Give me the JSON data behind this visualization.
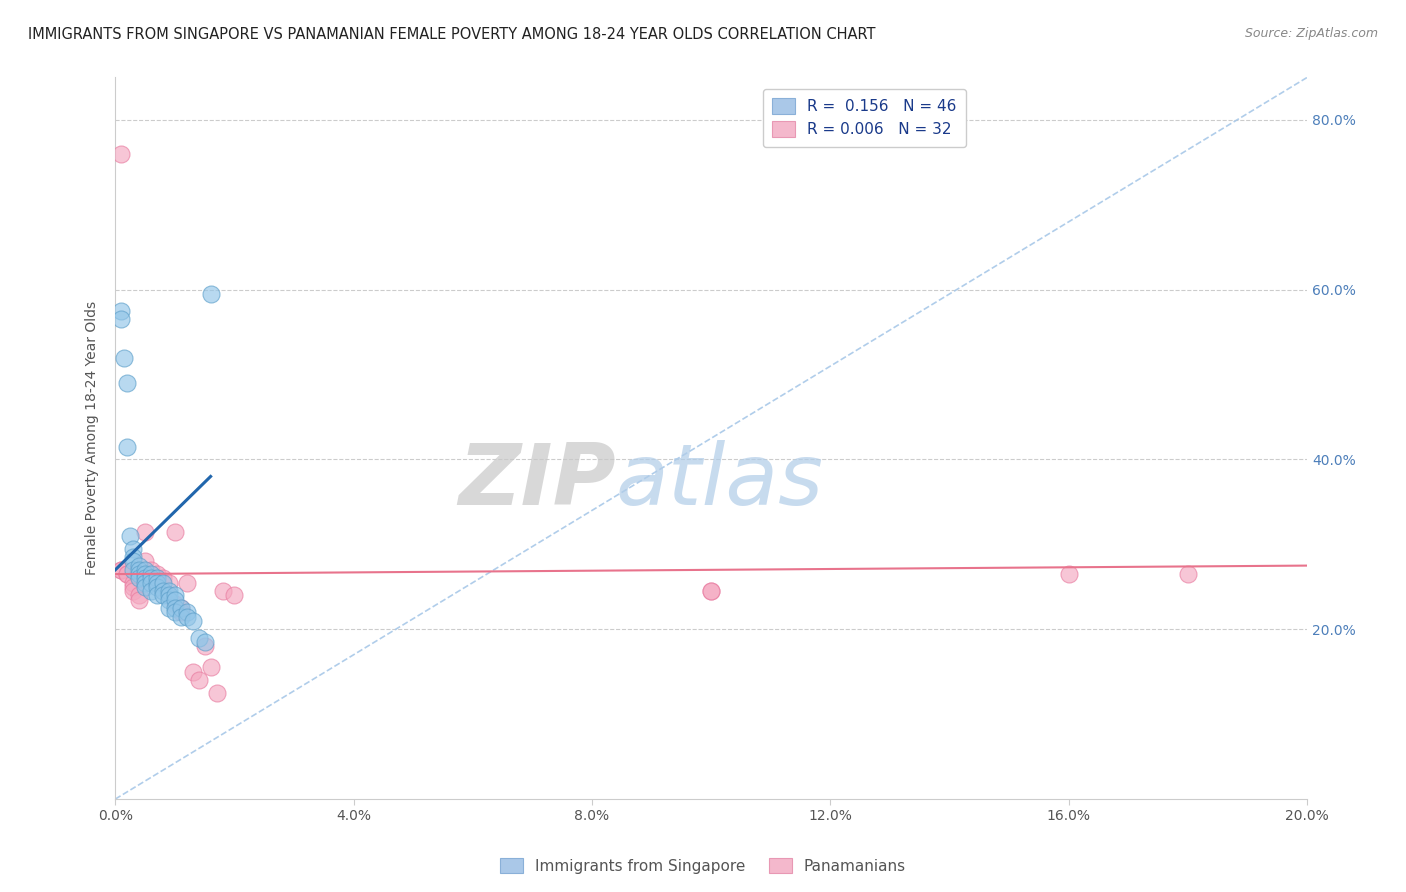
{
  "title": "IMMIGRANTS FROM SINGAPORE VS PANAMANIAN FEMALE POVERTY AMONG 18-24 YEAR OLDS CORRELATION CHART",
  "source": "Source: ZipAtlas.com",
  "ylabel": "Female Poverty Among 18-24 Year Olds",
  "xlim": [
    0.0,
    0.2
  ],
  "ylim": [
    0.0,
    0.85
  ],
  "xticks": [
    0.0,
    0.04,
    0.08,
    0.12,
    0.16,
    0.2
  ],
  "yticks": [
    0.0,
    0.2,
    0.4,
    0.6,
    0.8
  ],
  "xticklabels": [
    "0.0%",
    "4.0%",
    "8.0%",
    "12.0%",
    "16.0%",
    "20.0%"
  ],
  "yticklabels_right": [
    "",
    "20.0%",
    "40.0%",
    "60.0%",
    "80.0%"
  ],
  "legend_label_blue": "R =  0.156   N = 46",
  "legend_label_pink": "R = 0.006   N = 32",
  "singapore_color": "#92c5e8",
  "panama_color": "#f4a8c0",
  "singapore_edge_color": "#5b9ec9",
  "panama_edge_color": "#e87a9f",
  "singapore_line_color": "#2166ac",
  "panama_line_color": "#e8738c",
  "diagonal_color": "#a8c8e8",
  "watermark_zip": "ZIP",
  "watermark_atlas": "atlas",
  "background_color": "#ffffff",
  "grid_color": "#cccccc",
  "singapore_x": [
    0.001,
    0.001,
    0.0015,
    0.002,
    0.002,
    0.0025,
    0.003,
    0.003,
    0.003,
    0.003,
    0.004,
    0.004,
    0.004,
    0.004,
    0.005,
    0.005,
    0.005,
    0.005,
    0.005,
    0.006,
    0.006,
    0.006,
    0.006,
    0.007,
    0.007,
    0.007,
    0.007,
    0.008,
    0.008,
    0.008,
    0.009,
    0.009,
    0.009,
    0.009,
    0.01,
    0.01,
    0.01,
    0.01,
    0.011,
    0.011,
    0.012,
    0.012,
    0.013,
    0.014,
    0.015,
    0.016
  ],
  "singapore_y": [
    0.575,
    0.565,
    0.52,
    0.49,
    0.415,
    0.31,
    0.295,
    0.285,
    0.28,
    0.27,
    0.275,
    0.27,
    0.265,
    0.26,
    0.27,
    0.265,
    0.26,
    0.255,
    0.25,
    0.265,
    0.26,
    0.255,
    0.245,
    0.26,
    0.255,
    0.25,
    0.24,
    0.255,
    0.245,
    0.24,
    0.245,
    0.24,
    0.235,
    0.225,
    0.24,
    0.235,
    0.225,
    0.22,
    0.225,
    0.215,
    0.22,
    0.215,
    0.21,
    0.19,
    0.185,
    0.595
  ],
  "panama_x": [
    0.001,
    0.001,
    0.001,
    0.002,
    0.002,
    0.003,
    0.003,
    0.003,
    0.004,
    0.004,
    0.005,
    0.005,
    0.006,
    0.007,
    0.008,
    0.009,
    0.01,
    0.01,
    0.011,
    0.011,
    0.012,
    0.013,
    0.014,
    0.015,
    0.016,
    0.017,
    0.018,
    0.02,
    0.1,
    0.1,
    0.16,
    0.18
  ],
  "panama_y": [
    0.76,
    0.27,
    0.27,
    0.265,
    0.265,
    0.255,
    0.25,
    0.245,
    0.24,
    0.235,
    0.315,
    0.28,
    0.27,
    0.265,
    0.26,
    0.255,
    0.315,
    0.23,
    0.225,
    0.22,
    0.255,
    0.15,
    0.14,
    0.18,
    0.155,
    0.125,
    0.245,
    0.24,
    0.245,
    0.245,
    0.265,
    0.265
  ],
  "singapore_trend_x": [
    0.0,
    0.016
  ],
  "singapore_trend_y": [
    0.27,
    0.38
  ],
  "panama_trend_x": [
    0.0,
    0.2
  ],
  "panama_trend_y": [
    0.265,
    0.275
  ]
}
